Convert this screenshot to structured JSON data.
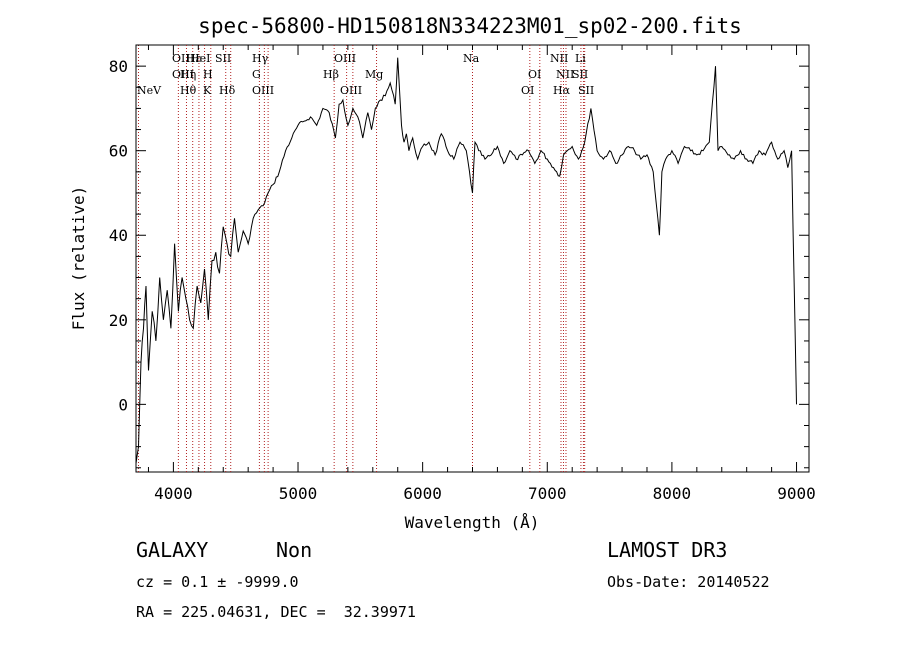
{
  "chart_data": {
    "type": "line",
    "title": "spec-56800-HD150818N334223M01_sp02-200.fits",
    "xlabel": "Wavelength (Å)",
    "ylabel": "Flux (relative)",
    "xlim": [
      3700,
      9100
    ],
    "ylim": [
      -16,
      85
    ],
    "xticks": [
      4000,
      5000,
      6000,
      7000,
      8000,
      9000
    ],
    "yticks": [
      0,
      20,
      40,
      60,
      80
    ],
    "grid": false,
    "series": [
      {
        "name": "spectrum",
        "x": [
          3700,
          3720,
          3740,
          3760,
          3780,
          3800,
          3830,
          3860,
          3890,
          3920,
          3950,
          3980,
          4010,
          4040,
          4070,
          4100,
          4130,
          4160,
          4190,
          4220,
          4250,
          4280,
          4310,
          4340,
          4370,
          4400,
          4430,
          4460,
          4490,
          4520,
          4560,
          4600,
          4640,
          4680,
          4720,
          4760,
          4800,
          4850,
          4900,
          4950,
          5000,
          5050,
          5100,
          5150,
          5200,
          5250,
          5300,
          5330,
          5360,
          5400,
          5440,
          5480,
          5520,
          5560,
          5590,
          5620,
          5660,
          5700,
          5740,
          5780,
          5800,
          5830,
          5850,
          5870,
          5890,
          5920,
          5960,
          6000,
          6050,
          6100,
          6150,
          6200,
          6250,
          6300,
          6350,
          6400,
          6420,
          6450,
          6500,
          6550,
          6600,
          6650,
          6700,
          6750,
          6800,
          6850,
          6900,
          6950,
          7000,
          7050,
          7100,
          7130,
          7160,
          7200,
          7250,
          7300,
          7350,
          7400,
          7450,
          7500,
          7550,
          7600,
          7650,
          7700,
          7750,
          7800,
          7850,
          7900,
          7920,
          7950,
          8000,
          8050,
          8100,
          8150,
          8200,
          8250,
          8300,
          8350,
          8370,
          8400,
          8450,
          8500,
          8550,
          8600,
          8650,
          8700,
          8750,
          8800,
          8850,
          8900,
          8930,
          8960,
          9000
        ],
        "values": [
          -14,
          -10,
          10,
          18,
          28,
          8,
          22,
          15,
          30,
          20,
          27,
          18,
          38,
          22,
          30,
          25,
          20,
          18,
          28,
          24,
          32,
          20,
          34,
          36,
          31,
          42,
          38,
          35,
          44,
          36,
          41,
          38,
          44,
          46,
          47,
          50,
          52,
          55,
          60,
          63,
          66,
          67,
          68,
          66,
          70,
          69,
          63,
          71,
          72,
          66,
          70,
          68,
          63,
          69,
          65,
          70,
          72,
          73,
          76,
          71,
          82,
          66,
          62,
          64,
          60,
          63,
          58,
          61,
          62,
          59,
          64,
          60,
          58,
          62,
          60,
          50,
          62,
          60,
          58,
          59,
          61,
          57,
          60,
          58,
          59,
          60,
          57,
          60,
          58,
          56,
          54,
          59,
          60,
          61,
          58,
          62,
          70,
          60,
          58,
          60,
          57,
          59,
          61,
          60,
          58,
          59,
          55,
          40,
          55,
          58,
          60,
          57,
          61,
          60,
          59,
          60,
          62,
          80,
          60,
          61,
          59,
          58,
          60,
          58,
          57,
          60,
          59,
          62,
          58,
          60,
          56,
          60,
          0
        ]
      }
    ],
    "lines": [
      {
        "label": "NeV",
        "wavelength": 3426,
        "row": 3
      },
      {
        "label": "OII",
        "wavelength": 3727,
        "row": 1
      },
      {
        "label": "OIII",
        "wavelength": 3869,
        "row": 2
      },
      {
        "label": "Hε",
        "wavelength": 3970,
        "row": 1
      },
      {
        "label": "HeI",
        "wavelength": 4026,
        "row": 1
      },
      {
        "label": "Hη",
        "wavelength": 3835,
        "row": 2
      },
      {
        "label": "Hθ",
        "wavelength": 3798,
        "row": 3
      },
      {
        "label": "K",
        "wavelength": 3934,
        "row": 3
      },
      {
        "label": "H",
        "wavelength": 3969,
        "row": 2
      },
      {
        "label": "SII",
        "wavelength": 4072,
        "row": 1
      },
      {
        "label": "Hδ",
        "wavelength": 4102,
        "row": 3
      },
      {
        "label": "Hγ",
        "wavelength": 4340,
        "row": 1
      },
      {
        "label": "G",
        "wavelength": 4305,
        "row": 2
      },
      {
        "label": "OIII",
        "wavelength": 4363,
        "row": 3
      },
      {
        "label": "Hβ",
        "wavelength": 4861,
        "row": 2
      },
      {
        "label": "OIII",
        "wavelength": 4959,
        "row": 1
      },
      {
        "label": "OIII",
        "wavelength": 5007,
        "row": 3
      },
      {
        "label": "Mg",
        "wavelength": 5175,
        "row": 2
      },
      {
        "label": "Na",
        "wavelength": 5893,
        "row": 1
      },
      {
        "label": "OI",
        "wavelength": 6300,
        "row": 2
      },
      {
        "label": "OI",
        "wavelength": 6364,
        "row": 3
      },
      {
        "label": "NII",
        "wavelength": 6548,
        "row": 1
      },
      {
        "label": "NII",
        "wavelength": 6583,
        "row": 2
      },
      {
        "label": "Hα",
        "wavelength": 6563,
        "row": 3
      },
      {
        "label": "Li",
        "wavelength": 6708,
        "row": 1
      },
      {
        "label": "SII",
        "wavelength": 6716,
        "row": 2
      },
      {
        "label": "SII",
        "wavelength": 6731,
        "row": 3
      }
    ],
    "line_positions_observed": [
      3720,
      4040,
      4105,
      4155,
      4205,
      4250,
      4300,
      4420,
      4460,
      4690,
      4730,
      4760,
      5290,
      5390,
      5440,
      5630,
      6400,
      6860,
      6940,
      7110,
      7130,
      7150,
      7270,
      7290,
      7300
    ],
    "colors": {
      "spectrum": "#000000",
      "lines": "#b22222",
      "axes": "#000000"
    }
  },
  "footer": {
    "object_class": "GALAXY",
    "subclass": "Non",
    "survey": "LAMOST DR3",
    "redshift": "cz = 0.1 ± -9999.0",
    "obs_date": "Obs-Date: 20140522",
    "coords": "RA = 225.04631, DEC =  32.39971"
  }
}
